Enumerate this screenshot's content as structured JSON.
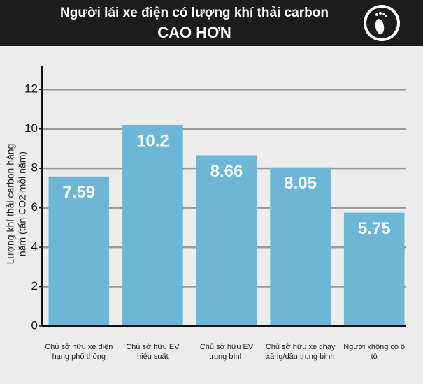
{
  "chart_data": {
    "type": "bar",
    "title": "Người lái xe điện có lượng khí thải carbon",
    "subtitle": "CAO HƠN",
    "y_label": "Lượng khí thải carbon hàng năm (tấn CO2 mỗi năm)",
    "categories": [
      "Chủ sở hữu xe điện hạng phổ thông",
      "Chủ sở hữu EV hiệu suất",
      "Chủ sở hữu EV trung bình",
      "Chủ sở hữu xe chạy xăng/dầu trung bình",
      "Người không có ô tô"
    ],
    "values": [
      7.59,
      10.2,
      8.66,
      8.05,
      5.75
    ],
    "color": "#6cb7d7",
    "ylim": [
      0,
      13
    ],
    "yticks": [
      0,
      2,
      4,
      6,
      8,
      10,
      12
    ],
    "grid": true
  }
}
